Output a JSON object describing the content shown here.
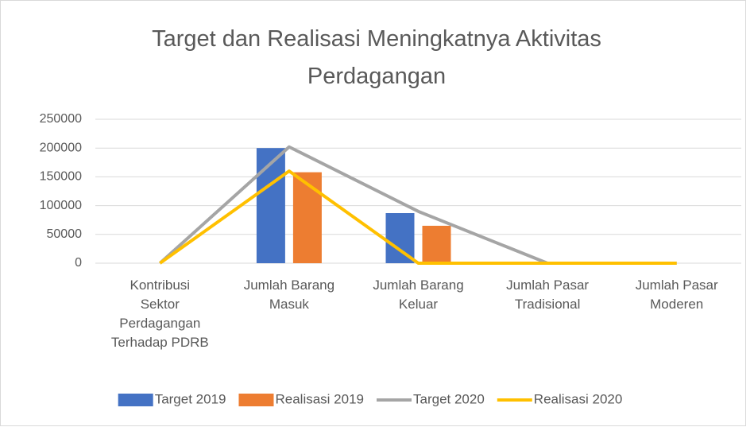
{
  "chart_data": {
    "type": "bar",
    "title": "Target dan Realisasi Meningkatnya Aktivitas Perdagangan",
    "categories": [
      "Kontribusi Sektor Perdagangan Terhadap PDRB",
      "Jumlah Barang Masuk",
      "Jumlah Barang Keluar",
      "Jumlah Pasar Tradisional",
      "Jumlah Pasar Moderen"
    ],
    "series": [
      {
        "name": "Target 2019",
        "type": "bar",
        "color": "#4472c4",
        "values": [
          0,
          200000,
          87000,
          0,
          0
        ]
      },
      {
        "name": "Realisasi 2019",
        "type": "bar",
        "color": "#ed7d31",
        "values": [
          0,
          158000,
          65000,
          0,
          0
        ]
      },
      {
        "name": "Target 2020",
        "type": "line",
        "color": "#a5a5a5",
        "values": [
          0,
          202000,
          90000,
          0,
          0
        ]
      },
      {
        "name": "Realisasi 2020",
        "type": "line",
        "color": "#ffc000",
        "values": [
          0,
          160000,
          0,
          0,
          0
        ]
      }
    ],
    "ylim": [
      0,
      250000
    ],
    "yticks": [
      0,
      50000,
      100000,
      150000,
      200000,
      250000
    ],
    "grid": true,
    "legend": "bottom"
  }
}
